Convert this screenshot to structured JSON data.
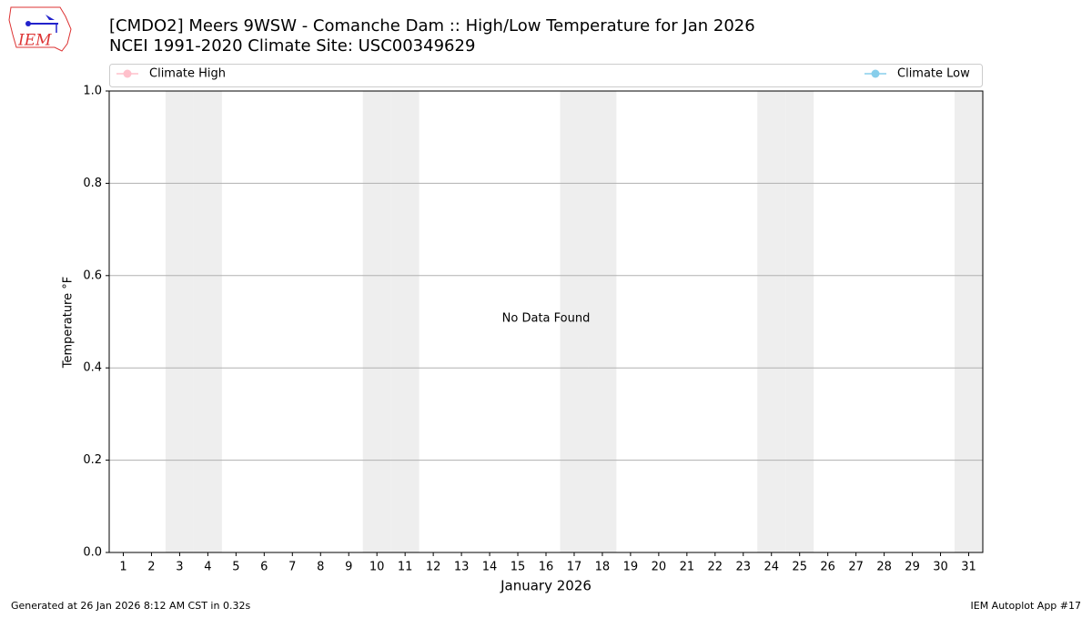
{
  "logo_text": "IEM",
  "chart_data": {
    "type": "line",
    "title": "[CMDO2] Meers 9WSW - Comanche Dam :: High/Low Temperature for Jan 2026",
    "subtitle": "NCEI 1991-2020 Climate Site: USC00349629",
    "x_label": "January 2026",
    "y_label": "Temperature °F",
    "annotation": "No Data Found",
    "x": [
      1,
      2,
      3,
      4,
      5,
      6,
      7,
      8,
      9,
      10,
      11,
      12,
      13,
      14,
      15,
      16,
      17,
      18,
      19,
      20,
      21,
      22,
      23,
      24,
      25,
      26,
      27,
      28,
      29,
      30,
      31
    ],
    "series": [
      {
        "name": "Climate High",
        "color": "#ffc0cb",
        "values": [
          null,
          null,
          null,
          null,
          null,
          null,
          null,
          null,
          null,
          null,
          null,
          null,
          null,
          null,
          null,
          null,
          null,
          null,
          null,
          null,
          null,
          null,
          null,
          null,
          null,
          null,
          null,
          null,
          null,
          null,
          null
        ]
      },
      {
        "name": "Climate Low",
        "color": "#87ceeb",
        "values": [
          null,
          null,
          null,
          null,
          null,
          null,
          null,
          null,
          null,
          null,
          null,
          null,
          null,
          null,
          null,
          null,
          null,
          null,
          null,
          null,
          null,
          null,
          null,
          null,
          null,
          null,
          null,
          null,
          null,
          null,
          null
        ]
      }
    ],
    "shaded_days": [
      3,
      4,
      10,
      11,
      17,
      18,
      24,
      25,
      31
    ],
    "xlim": [
      0.5,
      31.5
    ],
    "xticks": [
      1,
      2,
      3,
      4,
      5,
      6,
      7,
      8,
      9,
      10,
      11,
      12,
      13,
      14,
      15,
      16,
      17,
      18,
      19,
      20,
      21,
      22,
      23,
      24,
      25,
      26,
      27,
      28,
      29,
      30,
      31
    ],
    "ylim": [
      0,
      1
    ],
    "yticks": [
      {
        "value": 0,
        "label": "0.0"
      },
      0.2,
      0.4,
      0.6,
      0.8,
      {
        "value": 1,
        "label": "1.0"
      }
    ],
    "grid": true,
    "footer_left": "Generated at 26 Jan 2026 8:12 AM CST in 0.32s",
    "footer_right": "IEM Autoplot App #17"
  }
}
